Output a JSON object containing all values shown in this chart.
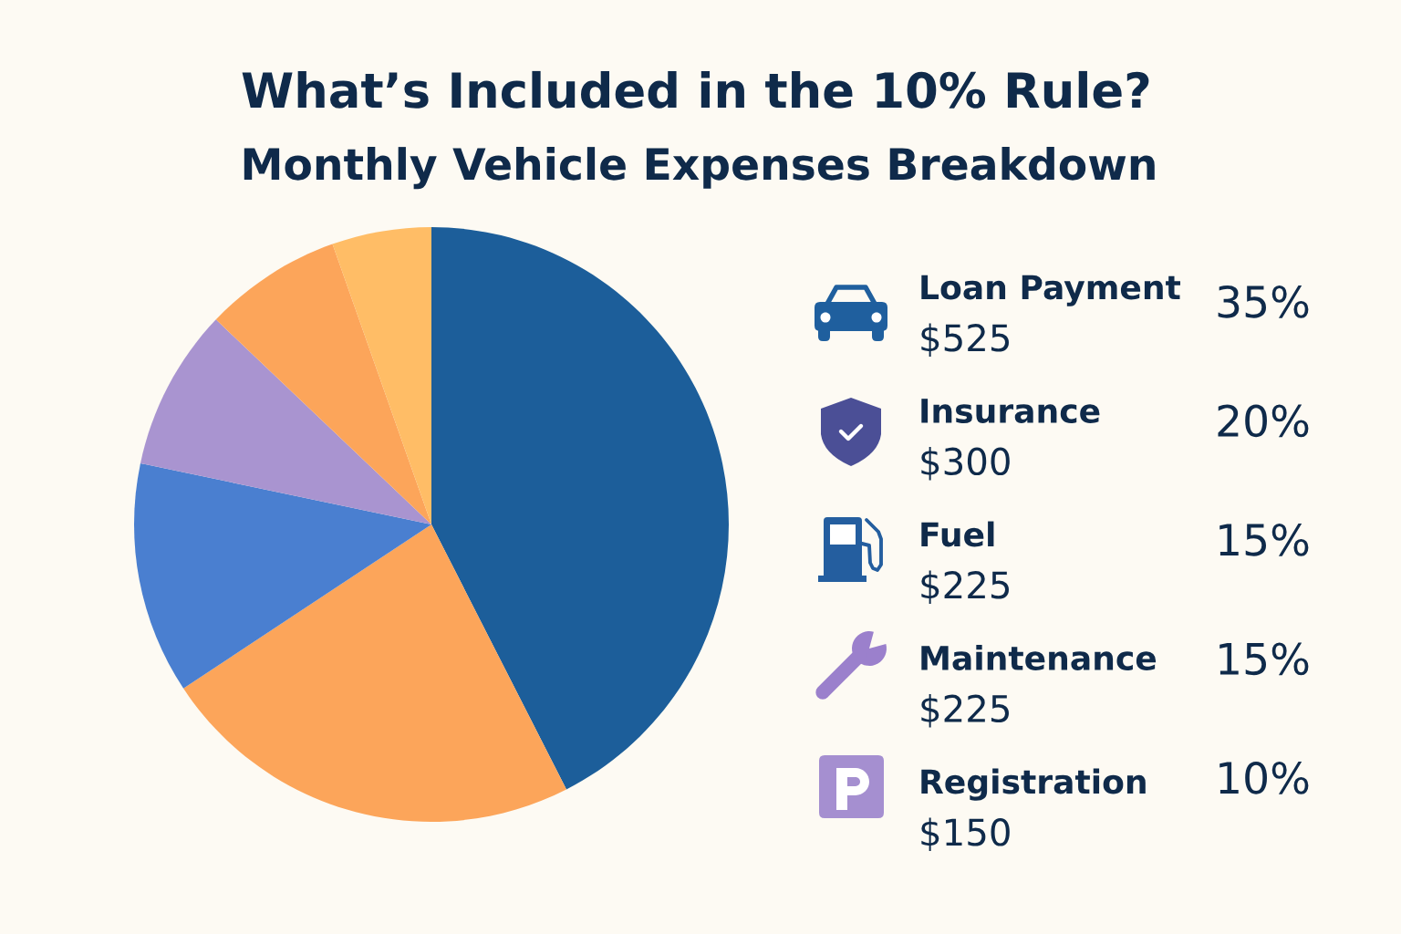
{
  "chart_data": [
    {
      "type": "pie",
      "title": "What’s Included in the 10% Rule?",
      "subtitle": "Monthly Vehicle Expenses Breakdown",
      "categories": [
        null,
        null,
        null,
        null,
        null,
        null
      ],
      "values": [
        42.5,
        23.2,
        12.6,
        8.8,
        7.5,
        5.4
      ],
      "colors": [
        "#1c5e9a",
        "#fca55a",
        "#4a7fd0",
        "#a994d0",
        "#fca55a",
        "#ffbd66"
      ]
    },
    {
      "type": "other",
      "annotations": [
        "Loan Payment",
        "$525",
        "35%",
        "Insurance",
        "$300",
        "20%",
        "Fuel",
        "$225",
        "15%",
        "Maintenance",
        "$225",
        "15%",
        "Registration",
        "$150",
        "10%"
      ]
    }
  ]
}
